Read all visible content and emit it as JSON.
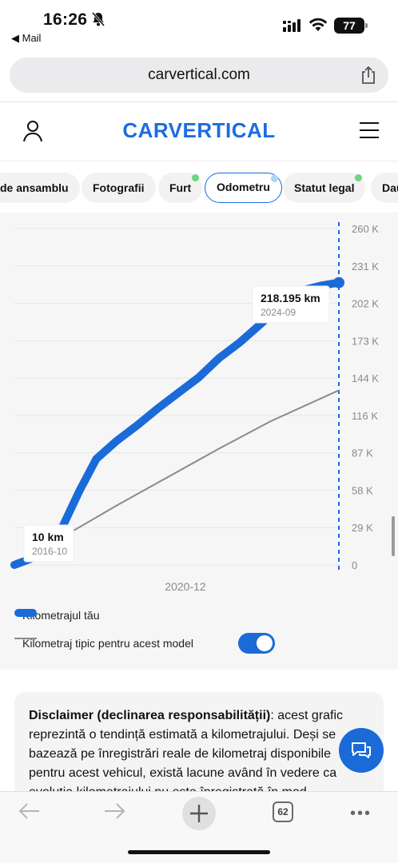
{
  "status_bar": {
    "time": "16:26",
    "back_app": "◀ Mail",
    "battery": "77"
  },
  "browser": {
    "url": "carvertical.com",
    "tab_count": "62"
  },
  "site": {
    "logo": "CARVERTICAL"
  },
  "tabs": [
    {
      "label": "de ansamblu",
      "dot": ""
    },
    {
      "label": "Fotografii",
      "dot": ""
    },
    {
      "label": "Furt",
      "dot": "#6fd37f"
    },
    {
      "label": "Odometru",
      "dot": "#a9d6f5"
    },
    {
      "label": "Statut legal",
      "dot": "#6fd37f"
    },
    {
      "label": "Dau",
      "dot": ""
    }
  ],
  "chart_data": {
    "type": "line",
    "y_ticks": [
      "0",
      "29 K",
      "58 K",
      "87 K",
      "116 K",
      "144 K",
      "173 K",
      "202 K",
      "231 K",
      "260 K"
    ],
    "ylim": [
      0,
      260000
    ],
    "x_tick_label": "2020-12",
    "grid": true,
    "series": [
      {
        "name": "Kilometrajul tău",
        "color": "#1a6bd8",
        "x": [
          "2016-10",
          "2017-03",
          "2017-07",
          "2017-12",
          "2018-05",
          "2018-10",
          "2019-04",
          "2019-10",
          "2020-04",
          "2020-10",
          "2021-04",
          "2021-10",
          "2022-04",
          "2022-10",
          "2023-04",
          "2023-10",
          "2024-04",
          "2024-09"
        ],
        "values": [
          10,
          5000,
          13000,
          29000,
          57000,
          82000,
          96000,
          108000,
          121000,
          133000,
          145000,
          160000,
          172000,
          186000,
          200000,
          212000,
          216000,
          218195
        ]
      },
      {
        "name": "Kilometraj tipic pentru acest model",
        "color": "#8a8a8a",
        "x": [
          "2016-10",
          "2018-01",
          "2019-04",
          "2020-07",
          "2021-10",
          "2023-01",
          "2024-09"
        ],
        "values": [
          0,
          23000,
          46000,
          68000,
          90000,
          111000,
          135000
        ]
      }
    ],
    "callouts": [
      {
        "value": "218.195 km",
        "date": "2024-09"
      },
      {
        "value": "10 km",
        "date": "2016-10"
      }
    ],
    "legend_placement": "bottom"
  },
  "toggle_on": true,
  "disclaimer": {
    "title": "Disclaimer (declinarea responsabilității)",
    "text": ": acest grafic reprezintă o tendință estimată a kilometrajului. Deși se bazează pe înregistrări reale de kilometraj disponibile pentru acest vehicul, există lacune având în vedere ca evoluția kilometrajului nu este înregistrată în mod"
  }
}
